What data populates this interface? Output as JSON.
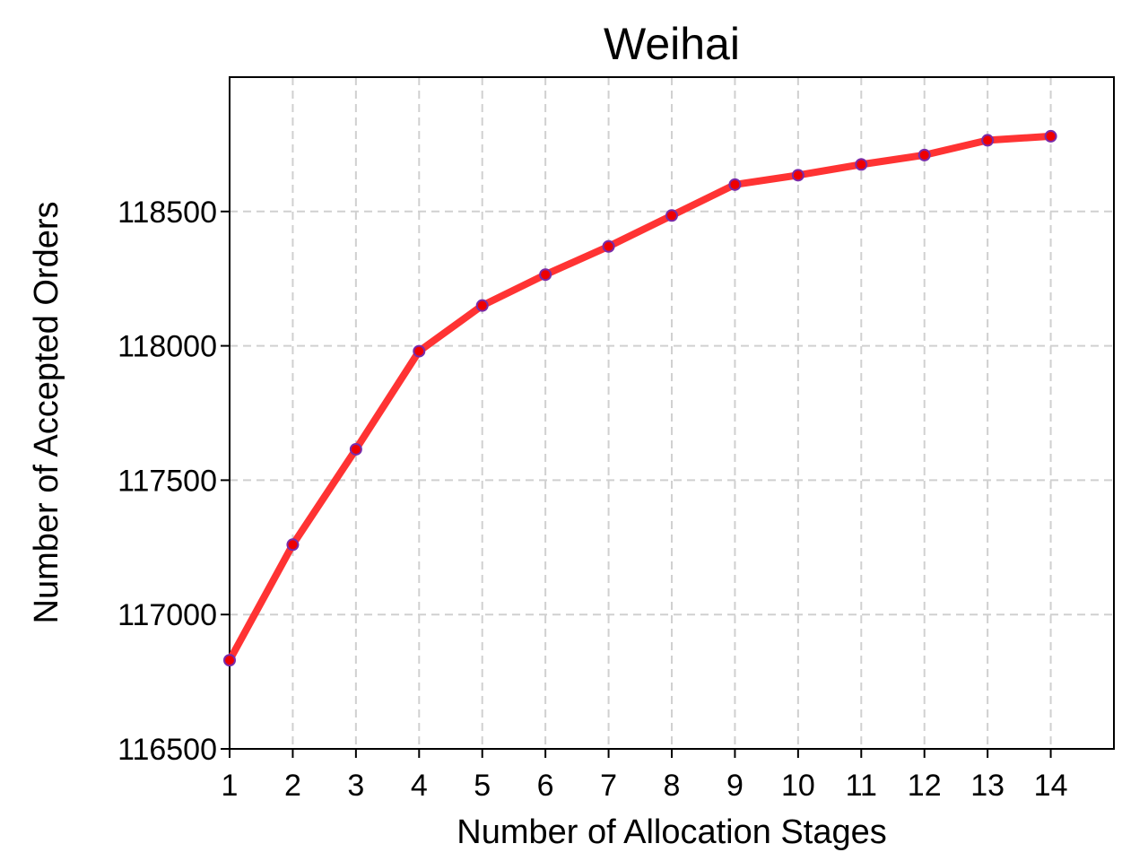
{
  "chart_data": {
    "type": "line",
    "title": "Weihai",
    "xlabel": "Number of Allocation Stages",
    "ylabel": "Number of Accepted Orders",
    "x": [
      1,
      2,
      3,
      4,
      5,
      6,
      7,
      8,
      9,
      10,
      11,
      12,
      13,
      14
    ],
    "series": [
      {
        "values": [
          116830,
          117260,
          117615,
          117980,
          118150,
          118265,
          118370,
          118485,
          118600,
          118635,
          118675,
          118710,
          118765,
          118780
        ]
      }
    ],
    "xlim": [
      1,
      15
    ],
    "ylim": [
      116500,
      119000
    ],
    "xticks": [
      "1",
      "2",
      "3",
      "4",
      "5",
      "6",
      "7",
      "8",
      "9",
      "10",
      "11",
      "12",
      "13",
      "14"
    ],
    "yticks": [
      116500,
      117000,
      117500,
      118000,
      118500
    ],
    "grid": true,
    "colors": {
      "line": "#ff3333",
      "marker_face": "#ee0000",
      "marker_edge": "#7a2aa8"
    }
  }
}
